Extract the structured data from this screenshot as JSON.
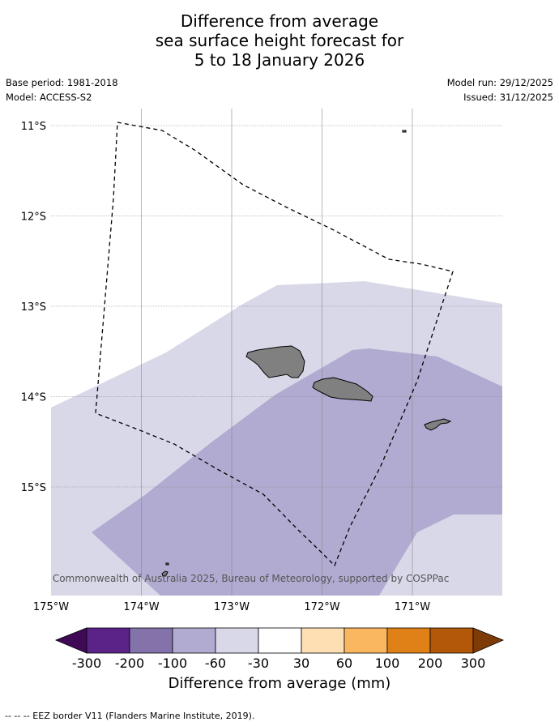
{
  "title": {
    "line1": "Difference from average",
    "line2": "sea surface height forecast for",
    "line3": "5 to 18 January 2026"
  },
  "meta": {
    "base_period": "Base period: 1981-2018",
    "model": "Model: ACCESS-S2",
    "model_run": "Model run: 29/12/2025",
    "issued": "Issued: 31/12/2025"
  },
  "map": {
    "lat_labels": [
      "11°S",
      "12°S",
      "13°S",
      "14°S",
      "15°S"
    ],
    "lon_labels": [
      "175°W",
      "174°W",
      "173°W",
      "172°W",
      "171°W"
    ],
    "copyright": "© Commonwealth of Australia 2025, Bureau of Meteorology, supported by COSPPac",
    "colors": {
      "land": "#808080",
      "anom_light": "#d8d8e9",
      "anom_mid": "#b1abd1",
      "grid": "#888888"
    }
  },
  "colorbar": {
    "title": "Difference from average (mm)",
    "tick_labels": [
      "-300",
      "-200",
      "-100",
      "-60",
      "-30",
      "30",
      "60",
      "100",
      "200",
      "300"
    ],
    "colors": [
      "#3f0a55",
      "#5b2287",
      "#8473ab",
      "#b1abd1",
      "#d8d8e9",
      "#ffffff",
      "#fddfb3",
      "#fbb660",
      "#e08117",
      "#b35808",
      "#7e3b08"
    ]
  },
  "footnote": "--  --  -- EEZ border V11 (Flanders Marine Institute, 2019)."
}
